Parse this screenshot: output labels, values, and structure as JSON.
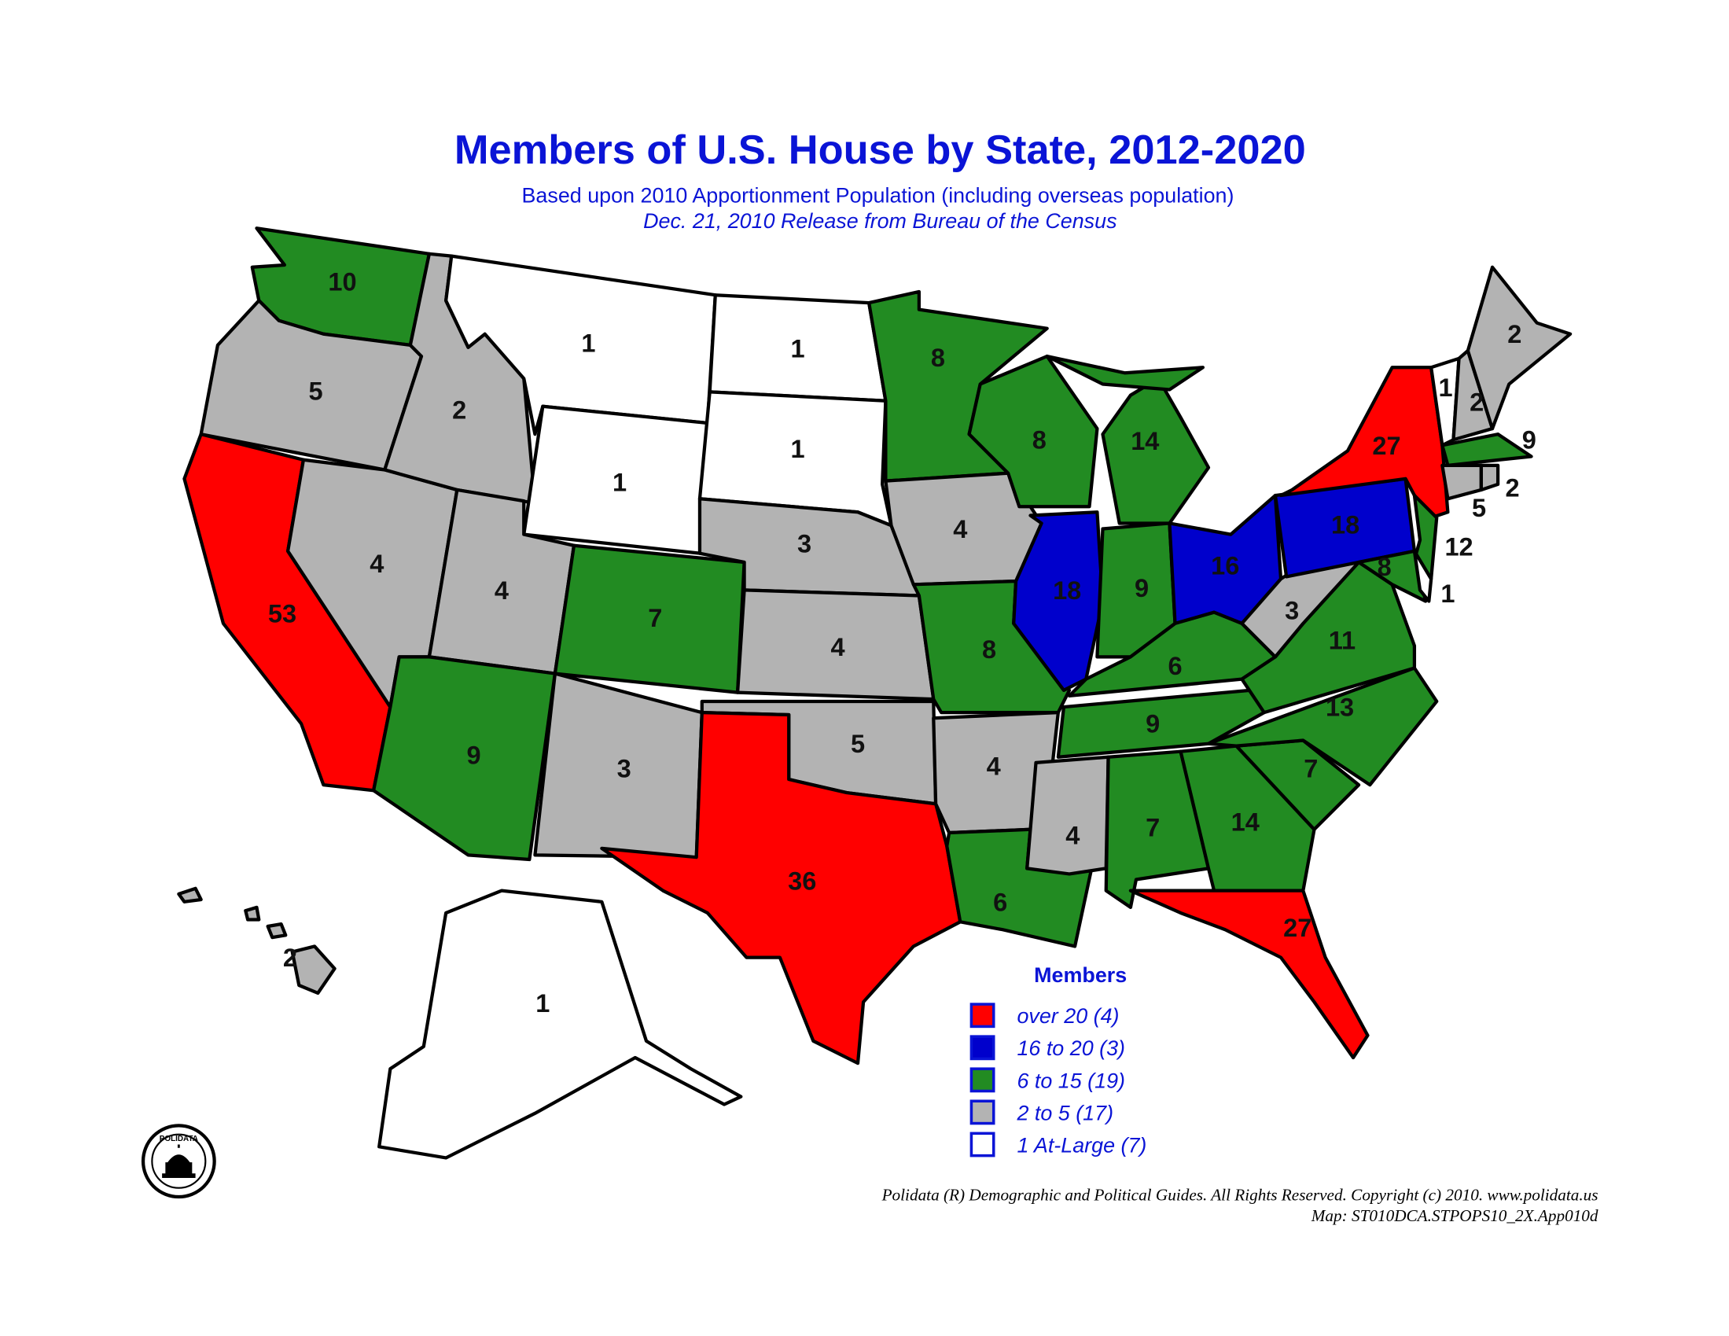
{
  "title": "Members of U.S. House by State, 2012-2020",
  "subtitle": "Based upon 2010 Apportionment Population (including overseas population)",
  "release": "Dec. 21, 2010 Release from Bureau of the Census",
  "legend": {
    "title": "Members",
    "items": [
      {
        "label": "over 20 (4)",
        "color": "#ff0000"
      },
      {
        "label": "16 to 20 (3)",
        "color": "#0000cc"
      },
      {
        "label": "6 to 15 (19)",
        "color": "#228b22"
      },
      {
        "label": "2 to 5 (17)",
        "color": "#b3b3b3"
      },
      {
        "label": "1 At-Large (7)",
        "color": "#ffffff"
      }
    ]
  },
  "states": [
    {
      "value": 10,
      "color": "#228b22"
    },
    {
      "value": 5,
      "color": "#b3b3b3"
    },
    {
      "value": 53,
      "color": "#ff0000"
    },
    {
      "value": 4,
      "color": "#b3b3b3"
    },
    {
      "value": 2,
      "color": "#b3b3b3"
    },
    {
      "value": 1,
      "color": "#ffffff"
    },
    {
      "value": 1,
      "color": "#ffffff"
    },
    {
      "value": 4,
      "color": "#b3b3b3"
    },
    {
      "value": 7,
      "color": "#228b22"
    },
    {
      "value": 9,
      "color": "#228b22"
    },
    {
      "value": 3,
      "color": "#b3b3b3"
    },
    {
      "value": 1,
      "color": "#ffffff"
    },
    {
      "value": 1,
      "color": "#ffffff"
    },
    {
      "value": 3,
      "color": "#b3b3b3"
    },
    {
      "value": 4,
      "color": "#b3b3b3"
    },
    {
      "value": 5,
      "color": "#b3b3b3"
    },
    {
      "value": 36,
      "color": "#ff0000"
    },
    {
      "value": 8,
      "color": "#228b22"
    },
    {
      "value": 4,
      "color": "#b3b3b3"
    },
    {
      "value": 8,
      "color": "#228b22"
    },
    {
      "value": 4,
      "color": "#b3b3b3"
    },
    {
      "value": 6,
      "color": "#228b22"
    },
    {
      "value": 8,
      "color": "#228b22"
    },
    {
      "value": 18,
      "color": "#0000cc"
    },
    {
      "value": 14,
      "color": "#228b22"
    },
    {
      "value": 9,
      "color": "#228b22"
    },
    {
      "value": 16,
      "color": "#0000cc"
    },
    {
      "value": 6,
      "color": "#228b22"
    },
    {
      "value": 9,
      "color": "#228b22"
    },
    {
      "value": 4,
      "color": "#b3b3b3"
    },
    {
      "value": 7,
      "color": "#228b22"
    },
    {
      "value": 14,
      "color": "#228b22"
    },
    {
      "value": 27,
      "color": "#ff0000"
    },
    {
      "value": 7,
      "color": "#228b22"
    },
    {
      "value": 13,
      "color": "#228b22"
    },
    {
      "value": 11,
      "color": "#228b22"
    },
    {
      "value": 3,
      "color": "#b3b3b3"
    },
    {
      "value": 18,
      "color": "#0000cc"
    },
    {
      "value": 27,
      "color": "#ff0000"
    },
    {
      "value": 12,
      "color": "#228b22"
    },
    {
      "value": 8,
      "color": "#228b22"
    },
    {
      "value": 1,
      "color": "#ffffff"
    },
    {
      "value": 1,
      "color": "#ffffff"
    },
    {
      "value": 2,
      "color": "#b3b3b3"
    },
    {
      "value": 2,
      "color": "#b3b3b3"
    },
    {
      "value": 9,
      "color": "#228b22"
    },
    {
      "value": 5,
      "color": "#b3b3b3"
    },
    {
      "value": 2,
      "color": "#b3b3b3"
    },
    {
      "value": 1,
      "color": "#ffffff"
    },
    {
      "value": 2,
      "color": "#b3b3b3"
    }
  ],
  "logo_text": "POLIDATA",
  "footer": [
    "Polidata (R) Demographic and Political Guides. All Rights Reserved. Copyright (c) 2010. www.polidata.us",
    "Map: ST010DCA.STPOPS10_2X.App010d"
  ]
}
